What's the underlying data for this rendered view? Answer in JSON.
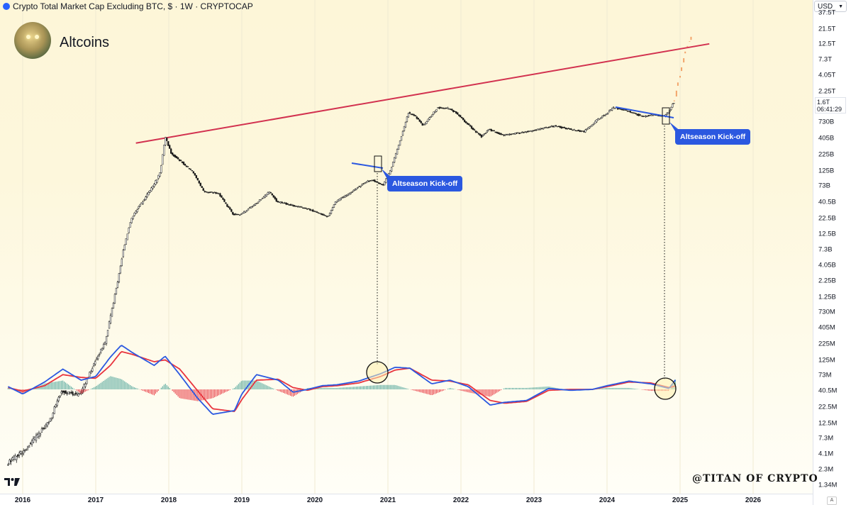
{
  "header": {
    "symbol_line": "Crypto Total Market Cap Excluding BTC, $ · 1W · CRYPTOCAP",
    "currency_button": "USD",
    "title": "Altcoins"
  },
  "price_label": {
    "value": "1.6T",
    "countdown": "06:41:29"
  },
  "annotations": {
    "callout_1": "Altseason Kick-off",
    "callout_2": "Altseason Kick-off"
  },
  "watermark": "@TITAN OF CRYPTO",
  "auto_button": "A",
  "colors": {
    "resistance_line": "#d2314f",
    "breakout_line": "#2b58e0",
    "callout_bg": "#2b58e0",
    "projection": "#f2a46a",
    "macd_line": "#2b58e0",
    "signal_line": "#e8343e",
    "hist_pos": "#4fa59a",
    "hist_neg": "#e8343e"
  },
  "chart_data": {
    "type": "line",
    "y_scale": "log",
    "y_ticks": [
      "37.5T",
      "21.5T",
      "12.5T",
      "7.3T",
      "4.05T",
      "2.25T",
      "730B",
      "405B",
      "225B",
      "125B",
      "73B",
      "40.5B",
      "22.5B",
      "12.5B",
      "7.3B",
      "4.05B",
      "2.25B",
      "1.25B",
      "730M",
      "405M",
      "225M",
      "125M",
      "73M",
      "40.5M",
      "22.5M",
      "12.5M",
      "7.3M",
      "4.1M",
      "2.3M",
      "1.34M"
    ],
    "x_ticks": [
      "2016",
      "2017",
      "2018",
      "2019",
      "2020",
      "2021",
      "2022",
      "2023",
      "2024",
      "2025",
      "2026"
    ],
    "series": [
      {
        "x": [
          2015.8,
          2016.0,
          2016.2,
          2016.4,
          2016.5,
          2016.55,
          2016.8,
          2017.0,
          2017.15,
          2017.3,
          2017.4,
          2017.5,
          2017.6,
          2017.7,
          2017.8,
          2017.9,
          2017.97,
          2018.05,
          2018.2,
          2018.35,
          2018.5,
          2018.7,
          2018.9,
          2019.0,
          2019.2,
          2019.4,
          2019.5,
          2019.7,
          2019.9,
          2020.2,
          2020.3,
          2020.5,
          2020.7,
          2020.8,
          2020.95,
          2021.05,
          2021.15,
          2021.3,
          2021.4,
          2021.5,
          2021.6,
          2021.7,
          2021.85,
          2021.95,
          2022.1,
          2022.3,
          2022.4,
          2022.6,
          2022.9,
          2023.1,
          2023.3,
          2023.5,
          2023.7,
          2023.9,
          2024.0,
          2024.1,
          2024.2,
          2024.3,
          2024.5,
          2024.65,
          2024.8,
          2024.87,
          2024.92
        ],
        "y": [
          4.17e-05,
          5.7e-05,
          9e-05,
          0.00015,
          0.00027,
          0.00033,
          0.0003,
          0.00075,
          0.00138,
          0.0063,
          0.0195,
          0.0447,
          0.063,
          0.085,
          0.115,
          0.17,
          0.48,
          0.3,
          0.23,
          0.174,
          0.1,
          0.095,
          0.052,
          0.052,
          0.07,
          0.1,
          0.075,
          0.068,
          0.062,
          0.049,
          0.075,
          0.095,
          0.13,
          0.14,
          0.12,
          0.18,
          0.34,
          0.95,
          0.85,
          0.65,
          0.85,
          1.1,
          1.08,
          0.95,
          0.7,
          0.48,
          0.59,
          0.5,
          0.55,
          0.6,
          0.65,
          0.6,
          0.55,
          0.8,
          0.9,
          1.1,
          1.05,
          1.0,
          0.85,
          0.9,
          0.86,
          1.0,
          1.25
        ]
      },
      {
        "x": [
          2024.92,
          2024.95,
          2024.97,
          2025.0,
          2025.02,
          2025.05,
          2025.07,
          2025.1,
          2025.13,
          2025.15,
          2025.18
        ],
        "y": [
          1.25,
          1.4,
          1.9,
          2.4,
          2.9,
          3.7,
          4.8,
          5.8,
          6.8,
          7.7,
          8.1
        ]
      }
    ],
    "resistance_line": {
      "x": [
        2017.55,
        2025.4
      ],
      "y": [
        0.4,
        6.8
      ]
    },
    "macd": {
      "x": [
        2015.8,
        2016.0,
        2016.3,
        2016.55,
        2016.8,
        2017.0,
        2017.2,
        2017.35,
        2017.5,
        2017.8,
        2017.95,
        2018.15,
        2018.4,
        2018.6,
        2018.9,
        2019.0,
        2019.2,
        2019.5,
        2019.7,
        2019.9,
        2020.1,
        2020.3,
        2020.6,
        2020.9,
        2021.1,
        2021.3,
        2021.6,
        2021.85,
        2022.1,
        2022.4,
        2022.6,
        2022.9,
        2023.2,
        2023.5,
        2023.8,
        2024.0,
        2024.3,
        2024.6,
        2024.85,
        2024.95
      ],
      "macd": [
        0.3,
        -0.5,
        0.8,
        2.2,
        1.0,
        1.4,
        3.5,
        4.8,
        4.0,
        2.6,
        3.6,
        1.6,
        -1.0,
        -2.7,
        -2.3,
        -0.5,
        1.6,
        1.0,
        -0.3,
        0.0,
        0.4,
        0.5,
        0.9,
        1.7,
        2.4,
        2.3,
        0.6,
        1.0,
        0.3,
        -1.7,
        -1.4,
        -1.2,
        0.1,
        -0.1,
        0.0,
        0.4,
        0.9,
        0.6,
        0.1,
        1.2
      ],
      "signal": [
        0.2,
        -0.2,
        0.4,
        1.6,
        1.3,
        1.2,
        2.6,
        4.1,
        3.8,
        3.0,
        3.2,
        2.2,
        -0.2,
        -2.1,
        -2.4,
        -1.1,
        1.0,
        1.1,
        0.2,
        -0.1,
        0.3,
        0.4,
        0.7,
        1.4,
        2.1,
        2.3,
        1.0,
        0.9,
        0.5,
        -1.2,
        -1.5,
        -1.3,
        -0.1,
        0.0,
        0.0,
        0.3,
        0.8,
        0.7,
        0.2,
        0.4
      ]
    }
  }
}
